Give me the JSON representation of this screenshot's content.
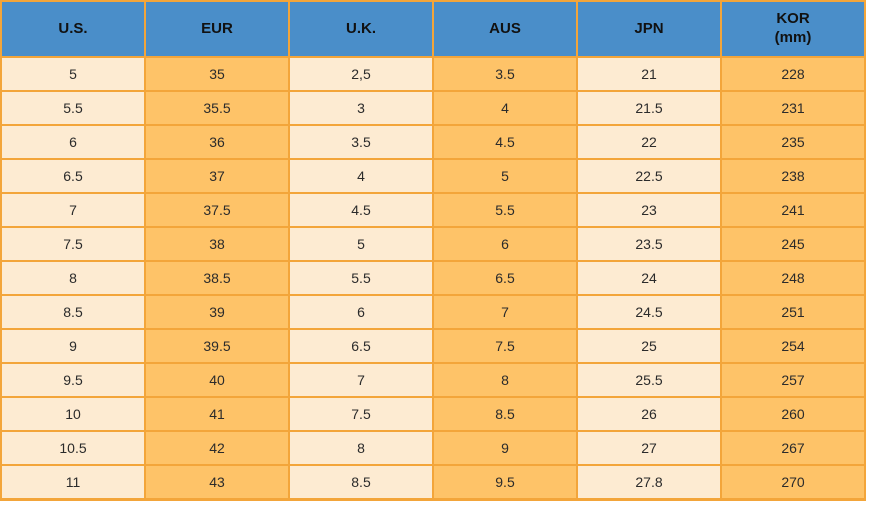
{
  "table": {
    "header": [
      {
        "label": "U.S."
      },
      {
        "label": "EUR"
      },
      {
        "label": "U.K."
      },
      {
        "label": "AUS"
      },
      {
        "label": "JPN"
      },
      {
        "label": "KOR",
        "sublabel": "(mm)"
      }
    ]
  },
  "chart_data": {
    "type": "table",
    "columns": [
      "U.S.",
      "EUR",
      "U.K.",
      "AUS",
      "JPN",
      "KOR (mm)"
    ],
    "rows": [
      [
        "5",
        "35",
        "2,5",
        "3.5",
        "21",
        "228"
      ],
      [
        "5.5",
        "35.5",
        "3",
        "4",
        "21.5",
        "231"
      ],
      [
        "6",
        "36",
        "3.5",
        "4.5",
        "22",
        "235"
      ],
      [
        "6.5",
        "37",
        "4",
        "5",
        "22.5",
        "238"
      ],
      [
        "7",
        "37.5",
        "4.5",
        "5.5",
        "23",
        "241"
      ],
      [
        "7.5",
        "38",
        "5",
        "6",
        "23.5",
        "245"
      ],
      [
        "8",
        "38.5",
        "5.5",
        "6.5",
        "24",
        "248"
      ],
      [
        "8.5",
        "39",
        "6",
        "7",
        "24.5",
        "251"
      ],
      [
        "9",
        "39.5",
        "6.5",
        "7.5",
        "25",
        "254"
      ],
      [
        "9.5",
        "40",
        "7",
        "8",
        "25.5",
        "257"
      ],
      [
        "10",
        "41",
        "7.5",
        "8.5",
        "26",
        "260"
      ],
      [
        "10.5",
        "42",
        "8",
        "9",
        "27",
        "267"
      ],
      [
        "11",
        "43",
        "8.5",
        "9.5",
        "27.8",
        "270"
      ]
    ],
    "layout": {
      "grid": true,
      "column_fill_pattern": [
        "light",
        "orange",
        "light",
        "orange",
        "light",
        "orange"
      ]
    }
  },
  "colors": {
    "header_bg": "#4a8ec9",
    "header_text": "#111111",
    "column_light": "#fdebd2",
    "column_orange": "#fec368",
    "border": "#f3a53a",
    "cell_text": "#2b2b2b"
  }
}
